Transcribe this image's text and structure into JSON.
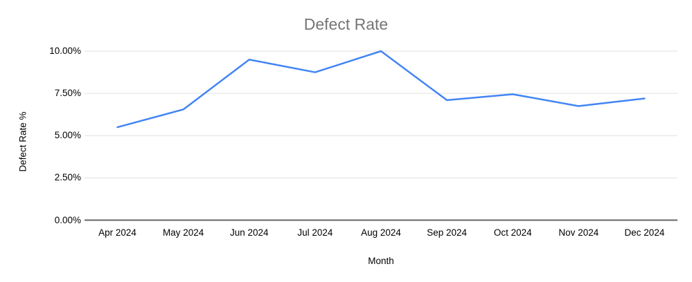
{
  "chart_data": {
    "type": "line",
    "title": "Defect Rate",
    "xlabel": "Month",
    "ylabel": "Defect Rate %",
    "categories": [
      "Apr 2024",
      "May 2024",
      "Jun 2024",
      "Jul 2024",
      "Aug 2024",
      "Sep 2024",
      "Oct 2024",
      "Nov 2024",
      "Dec 2024"
    ],
    "series": [
      {
        "name": "Defect Rate %",
        "values": [
          5.5,
          6.55,
          9.5,
          8.75,
          10.0,
          7.1,
          7.45,
          6.75,
          7.2
        ]
      }
    ],
    "ylim": [
      0,
      10
    ],
    "yticks": [
      0,
      2.5,
      5,
      7.5,
      10
    ],
    "ytick_labels": [
      "0.00%",
      "2.50%",
      "5.00%",
      "7.50%",
      "10.00%"
    ],
    "grid": "horizontal",
    "legend": "none",
    "colors": {
      "line": "#4285f4",
      "title": "#757575",
      "axis_text": "#000000",
      "gridline": "#e0e0e0",
      "axis_line": "#666666",
      "background": "#ffffff"
    }
  }
}
